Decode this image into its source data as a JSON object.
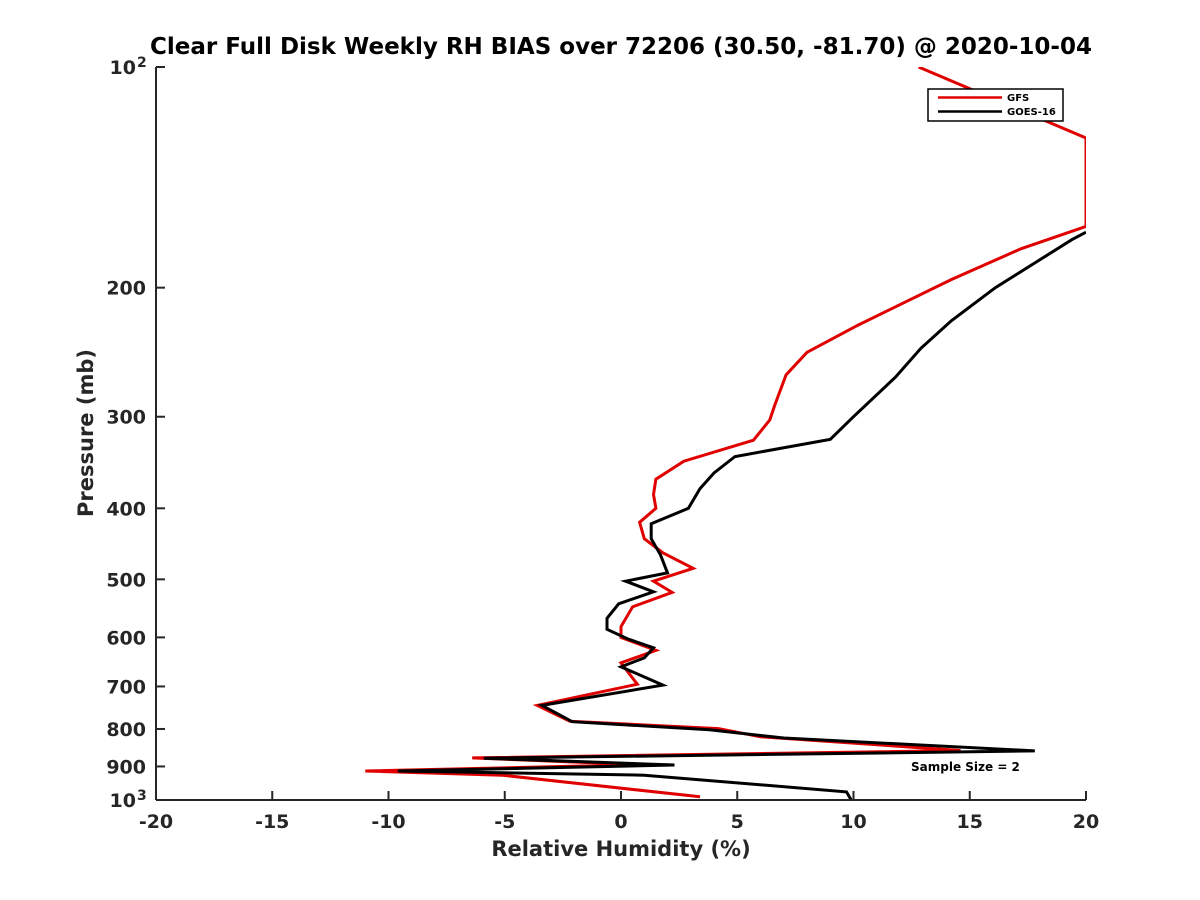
{
  "chart_data": {
    "type": "line",
    "title": "Clear Full Disk Weekly RH BIAS over 72206 (30.50, -81.70) @ 2020-10-04",
    "xlabel": "Relative Humidity (%)",
    "ylabel": "Pressure (mb)",
    "xlim": [
      -20,
      20
    ],
    "ylim": [
      100,
      1000
    ],
    "y_scale": "log",
    "y_reversed": true,
    "x_ticks": [
      "-20",
      "-15",
      "-10",
      "-5",
      "0",
      "5",
      "10",
      "15",
      "20"
    ],
    "y_tick_values": [
      100,
      200,
      300,
      400,
      500,
      600,
      700,
      800,
      900,
      1000
    ],
    "y_tick_labels": [
      {
        "base": "10",
        "exp": "2"
      },
      {
        "base": "200",
        "exp": ""
      },
      {
        "base": "300",
        "exp": ""
      },
      {
        "base": "400",
        "exp": ""
      },
      {
        "base": "500",
        "exp": ""
      },
      {
        "base": "600",
        "exp": ""
      },
      {
        "base": "700",
        "exp": ""
      },
      {
        "base": "800",
        "exp": ""
      },
      {
        "base": "900",
        "exp": ""
      },
      {
        "base": "10",
        "exp": "3"
      }
    ],
    "grid": false,
    "legend_position": "top-right",
    "annotation": "Sample Size = 2",
    "series": [
      {
        "name": "GFS",
        "color": "#e00000",
        "points": [
          [
            12.8,
            100
          ],
          [
            20.0,
            125
          ],
          [
            20.0,
            165
          ],
          [
            17.2,
            177
          ],
          [
            14.2,
            195
          ],
          [
            10.2,
            225
          ],
          [
            8.0,
            245
          ],
          [
            7.1,
            263
          ],
          [
            6.6,
            290
          ],
          [
            6.4,
            303
          ],
          [
            5.7,
            323
          ],
          [
            2.7,
            345
          ],
          [
            1.5,
            365
          ],
          [
            1.4,
            383
          ],
          [
            1.5,
            400
          ],
          [
            0.8,
            418
          ],
          [
            1.0,
            440
          ],
          [
            1.8,
            460
          ],
          [
            3.1,
            483
          ],
          [
            1.4,
            503
          ],
          [
            2.2,
            521
          ],
          [
            0.5,
            545
          ],
          [
            0.0,
            580
          ],
          [
            0.0,
            600
          ],
          [
            1.5,
            625
          ],
          [
            0.0,
            650
          ],
          [
            0.7,
            695
          ],
          [
            -3.6,
            743
          ],
          [
            -2.2,
            781
          ],
          [
            4.2,
            799
          ],
          [
            6.0,
            820
          ],
          [
            14.6,
            856
          ],
          [
            -6.4,
            876
          ],
          [
            0.8,
            895
          ],
          [
            -11.0,
            913
          ],
          [
            -5.1,
            925
          ],
          [
            3.4,
            990
          ]
        ]
      },
      {
        "name": "GOES-16",
        "color": "#000000",
        "points": [
          [
            20.0,
            168
          ],
          [
            19.4,
            172
          ],
          [
            16.1,
            200
          ],
          [
            14.2,
            222
          ],
          [
            12.9,
            242
          ],
          [
            11.8,
            265
          ],
          [
            10.0,
            300
          ],
          [
            9.0,
            322
          ],
          [
            4.9,
            340
          ],
          [
            4.0,
            358
          ],
          [
            3.4,
            376
          ],
          [
            2.9,
            400
          ],
          [
            1.3,
            420
          ],
          [
            1.3,
            440
          ],
          [
            1.7,
            463
          ],
          [
            2.0,
            490
          ],
          [
            0.2,
            503
          ],
          [
            1.4,
            520
          ],
          [
            -0.1,
            540
          ],
          [
            -0.6,
            565
          ],
          [
            -0.6,
            585
          ],
          [
            0.3,
            603
          ],
          [
            1.4,
            620
          ],
          [
            1.0,
            640
          ],
          [
            0.0,
            658
          ],
          [
            1.8,
            697
          ],
          [
            -3.4,
            743
          ],
          [
            -2.1,
            782
          ],
          [
            3.8,
            802
          ],
          [
            7.0,
            823
          ],
          [
            17.8,
            857
          ],
          [
            -5.9,
            877
          ],
          [
            2.3,
            896
          ],
          [
            -9.6,
            913
          ],
          [
            1.0,
            925
          ],
          [
            9.7,
            975
          ],
          [
            9.9,
            1000
          ]
        ]
      }
    ]
  }
}
